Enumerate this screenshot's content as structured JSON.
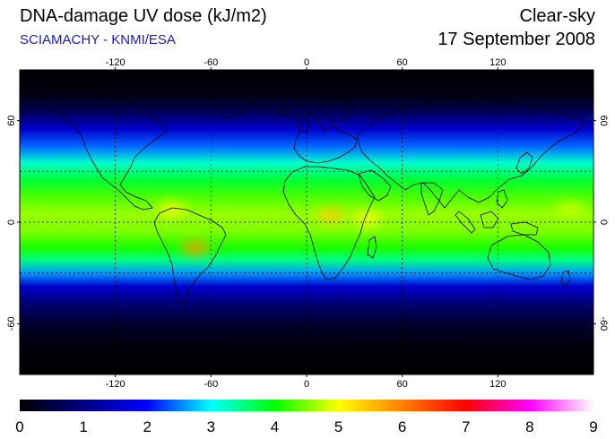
{
  "header": {
    "title": "DNA-damage UV dose (kJ/m2)",
    "subtitle": "SCIAMACHY - KNMI/ESA",
    "condition": "Clear-sky",
    "date": "17 September 2008"
  },
  "colors": {
    "subtitle": "#1a1acc",
    "ocean_dark": "#000014",
    "grid": "#000000",
    "coast": "#000000"
  },
  "map": {
    "projection": "equirectangular",
    "lon_range": [
      -180,
      180
    ],
    "lat_range": [
      -90,
      90
    ],
    "grid_lons": [
      -120,
      -60,
      0,
      60,
      120
    ],
    "grid_lats": [
      -30,
      0,
      30
    ],
    "lon_ticks": [
      {
        "value": -120,
        "label": "-120"
      },
      {
        "value": -60,
        "label": "-60"
      },
      {
        "value": 0,
        "label": "0"
      },
      {
        "value": 60,
        "label": "60"
      },
      {
        "value": 120,
        "label": "120"
      }
    ],
    "lat_ticks": [
      {
        "value": 60,
        "label": "60"
      },
      {
        "value": 0,
        "label": "0"
      },
      {
        "value": -60,
        "label": "-60"
      }
    ],
    "dose_profile": [
      {
        "lat": 90,
        "dose": 0.0
      },
      {
        "lat": 75,
        "dose": 0.15
      },
      {
        "lat": 65,
        "dose": 0.7
      },
      {
        "lat": 55,
        "dose": 1.6
      },
      {
        "lat": 45,
        "dose": 2.4
      },
      {
        "lat": 35,
        "dose": 3.2
      },
      {
        "lat": 25,
        "dose": 3.8
      },
      {
        "lat": 15,
        "dose": 4.3
      },
      {
        "lat": 5,
        "dose": 4.6
      },
      {
        "lat": -5,
        "dose": 4.5
      },
      {
        "lat": -15,
        "dose": 4.1
      },
      {
        "lat": -22,
        "dose": 3.5
      },
      {
        "lat": -30,
        "dose": 2.6
      },
      {
        "lat": -38,
        "dose": 1.6
      },
      {
        "lat": -48,
        "dose": 0.9
      },
      {
        "lat": -60,
        "dose": 0.35
      },
      {
        "lat": -72,
        "dose": 0.1
      },
      {
        "lat": -90,
        "dose": 0.0
      }
    ],
    "hotspots": [
      {
        "name": "andes",
        "lon": -70,
        "lat": -15,
        "dose": 5.8
      },
      {
        "name": "central-america",
        "lon": -85,
        "lat": 8,
        "dose": 5.0
      },
      {
        "name": "equatorial-africa",
        "lon": 15,
        "lat": 4,
        "dose": 5.4
      },
      {
        "name": "east-africa",
        "lon": 38,
        "lat": 2,
        "dose": 5.0
      },
      {
        "name": "west-pacific",
        "lon": 165,
        "lat": 8,
        "dose": 4.8
      }
    ]
  },
  "colorbar": {
    "min": 0,
    "max": 9,
    "labels": [
      "0",
      "1",
      "2",
      "3",
      "4",
      "5",
      "6",
      "7",
      "8",
      "9"
    ],
    "stops": [
      {
        "value": 0,
        "color": "#000000"
      },
      {
        "value": 1,
        "color": "#000080"
      },
      {
        "value": 2,
        "color": "#0000ff"
      },
      {
        "value": 3,
        "color": "#00ffff"
      },
      {
        "value": 4,
        "color": "#00ff00"
      },
      {
        "value": 5,
        "color": "#ffff00"
      },
      {
        "value": 6,
        "color": "#ff8000"
      },
      {
        "value": 7,
        "color": "#ff0000"
      },
      {
        "value": 8,
        "color": "#ff00ff"
      },
      {
        "value": 9,
        "color": "#ffffff"
      }
    ]
  }
}
